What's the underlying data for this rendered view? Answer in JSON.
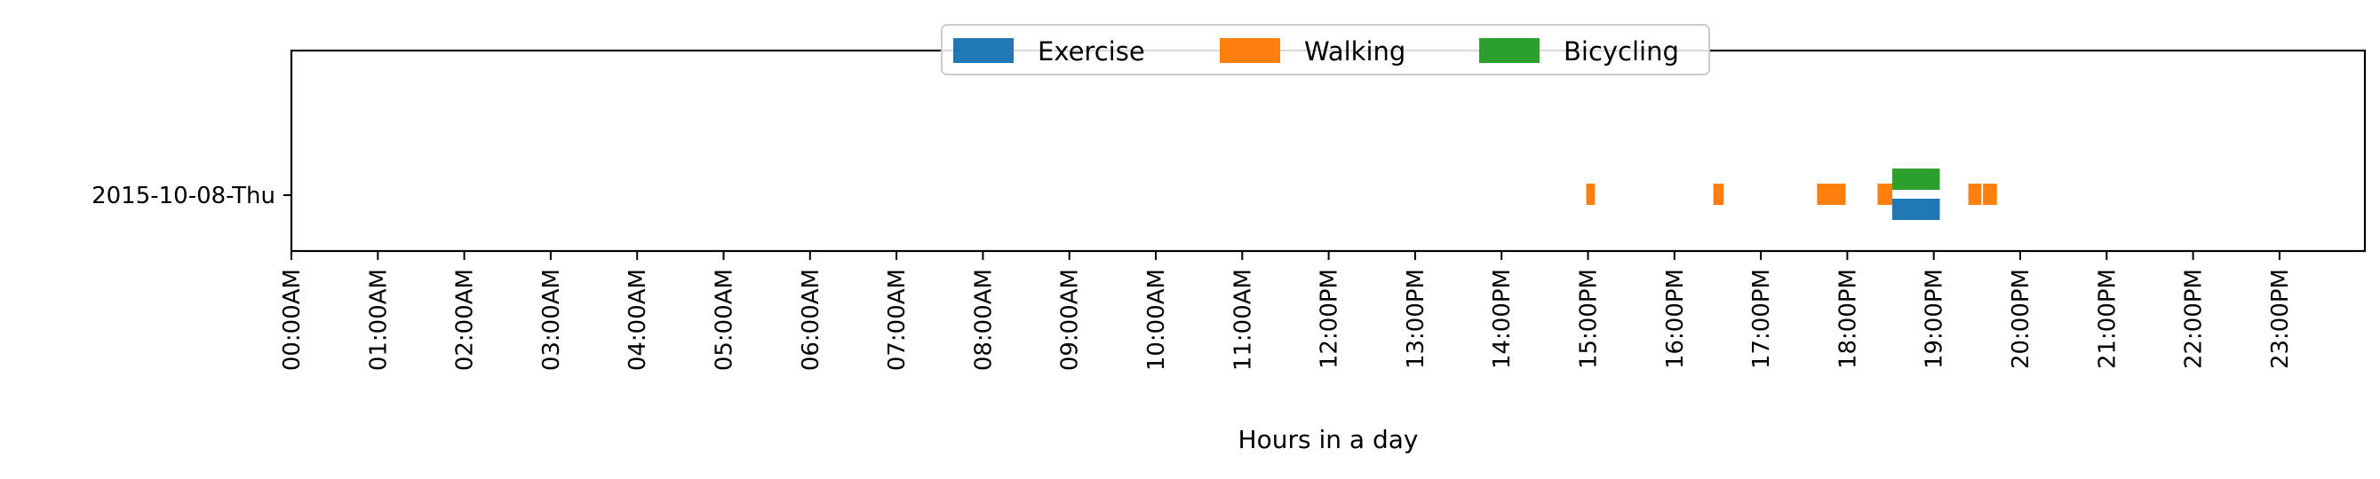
{
  "chart_data": {
    "type": "broken_barh",
    "title": "",
    "xlabel": "Hours in a day",
    "ylabel": "",
    "xlim": [
      0,
      24
    ],
    "x_tick_values": [
      0,
      1,
      2,
      3,
      4,
      5,
      6,
      7,
      8,
      9,
      10,
      11,
      12,
      13,
      14,
      15,
      16,
      17,
      18,
      19,
      20,
      21,
      22,
      23
    ],
    "x_tick_labels": [
      "00:00AM",
      "01:00AM",
      "02:00AM",
      "03:00AM",
      "04:00AM",
      "05:00AM",
      "06:00AM",
      "07:00AM",
      "08:00AM",
      "09:00AM",
      "10:00AM",
      "11:00AM",
      "12:00PM",
      "13:00PM",
      "14:00PM",
      "15:00PM",
      "16:00PM",
      "17:00PM",
      "18:00PM",
      "19:00PM",
      "20:00PM",
      "21:00PM",
      "22:00PM",
      "23:00PM"
    ],
    "categories": [
      "2015-10-08-Thu"
    ],
    "legend_position": "top-center",
    "grid": false,
    "series": [
      {
        "name": "Exercise",
        "color": "#1f77b4",
        "lane": "lower",
        "segments": [
          [
            18.52,
            19.07
          ]
        ]
      },
      {
        "name": "Walking",
        "color": "#ff7f0e",
        "lane": "center",
        "segments": [
          [
            14.98,
            15.08
          ],
          [
            16.45,
            16.57
          ],
          [
            17.65,
            17.98
          ],
          [
            18.35,
            18.52
          ],
          [
            19.4,
            19.55
          ],
          [
            19.57,
            19.73
          ]
        ]
      },
      {
        "name": "Bicycling",
        "color": "#2ca02c",
        "lane": "upper",
        "segments": [
          [
            18.52,
            19.07
          ]
        ]
      }
    ]
  }
}
